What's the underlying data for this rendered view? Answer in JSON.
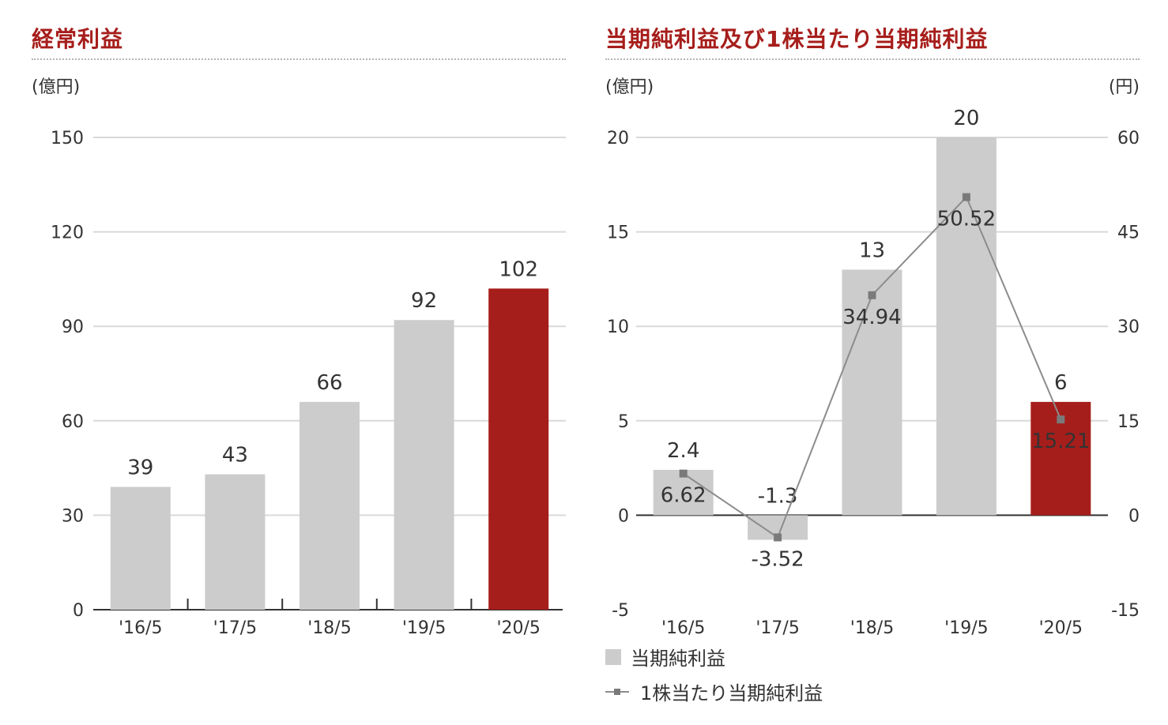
{
  "chart_data": [
    {
      "type": "bar",
      "title": "経常利益",
      "unit_label": "(億円)",
      "categories": [
        "'16/5",
        "'17/5",
        "'18/5",
        "'19/5",
        "'20/5"
      ],
      "values": [
        39,
        43,
        66,
        92,
        102
      ],
      "data_labels": [
        "39",
        "43",
        "66",
        "92",
        "102"
      ],
      "ylim": [
        0,
        150
      ],
      "yticks": [
        0,
        30,
        60,
        90,
        120,
        150
      ],
      "grid": true,
      "colors": [
        "#cccccc",
        "#cccccc",
        "#cccccc",
        "#cccccc",
        "#a61e1b"
      ]
    },
    {
      "type": "bar+line",
      "title": "当期純利益及び1株当たり当期純利益",
      "unit_label_left": "(億円)",
      "unit_label_right": "(円)",
      "categories": [
        "'16/5",
        "'17/5",
        "'18/5",
        "'19/5",
        "'20/5"
      ],
      "series": [
        {
          "name": "当期純利益",
          "type": "bar",
          "axis": "left",
          "values": [
            2.4,
            -1.3,
            13,
            20,
            6
          ],
          "data_labels": [
            "2.4",
            "-1.3",
            "13",
            "20",
            "6"
          ],
          "colors": [
            "#cccccc",
            "#cccccc",
            "#cccccc",
            "#cccccc",
            "#a61e1b"
          ]
        },
        {
          "name": "1株当たり当期純利益",
          "type": "line",
          "axis": "right",
          "values": [
            6.62,
            -3.52,
            34.94,
            50.52,
            15.21
          ],
          "data_labels": [
            "6.62",
            "-3.52",
            "34.94",
            "50.52",
            "15.21"
          ],
          "color": "#8c8c8c"
        }
      ],
      "ylim_left": [
        -5,
        20
      ],
      "yticks_left": [
        -5,
        0,
        5,
        10,
        15,
        20
      ],
      "ylim_right": [
        -15,
        60
      ],
      "yticks_right": [
        -15,
        0,
        15,
        30,
        45,
        60
      ],
      "grid": true,
      "legend": "bottom-left"
    }
  ]
}
